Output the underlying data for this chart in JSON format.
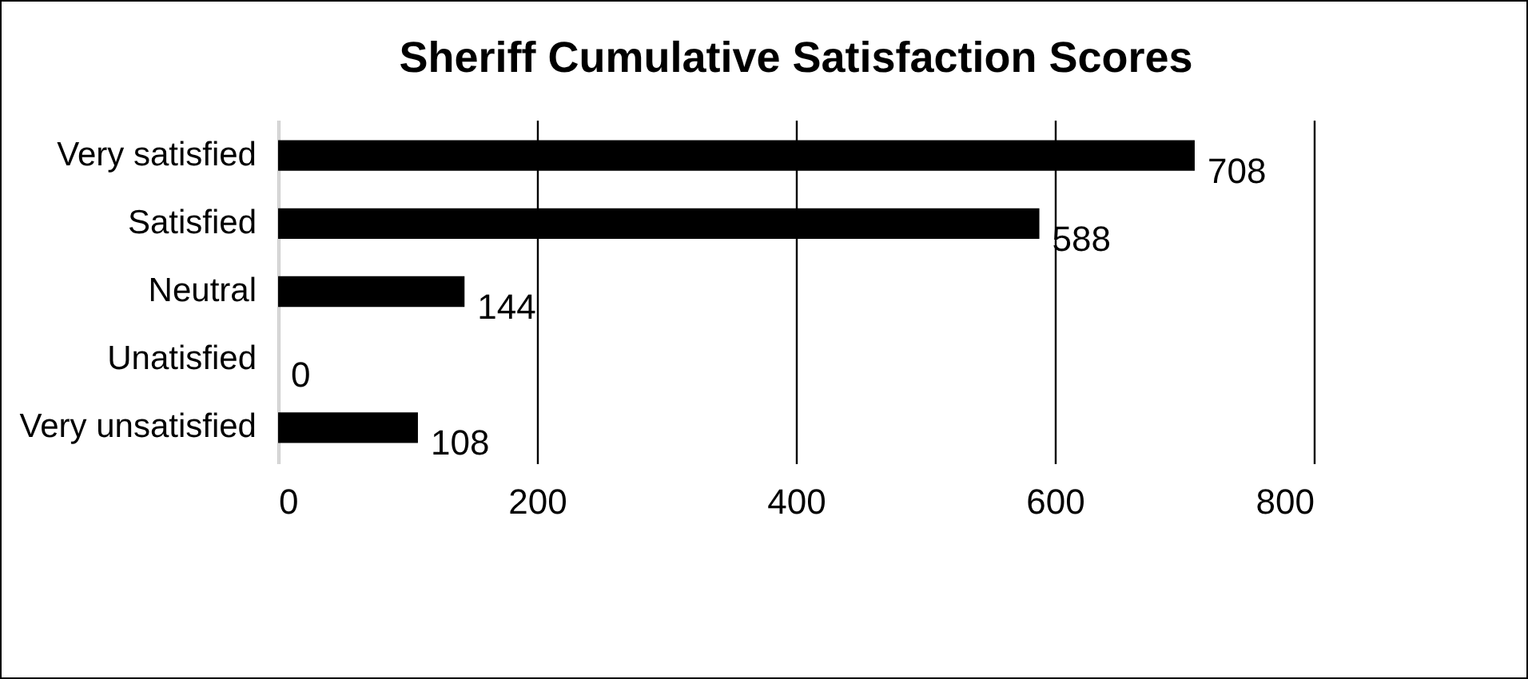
{
  "chart_data": {
    "type": "bar",
    "orientation": "horizontal",
    "title": "Sheriff Cumulative Satisfaction Scores",
    "categories": [
      "Very satisfied",
      "Satisfied",
      "Neutral",
      "Unatisfied",
      "Very unsatisfied"
    ],
    "values": [
      708,
      588,
      144,
      0,
      108
    ],
    "color": "#000000",
    "xlim": [
      0,
      800
    ],
    "xticks": [
      0,
      200,
      400,
      600,
      800
    ],
    "grid": "x",
    "data_labels": true
  }
}
